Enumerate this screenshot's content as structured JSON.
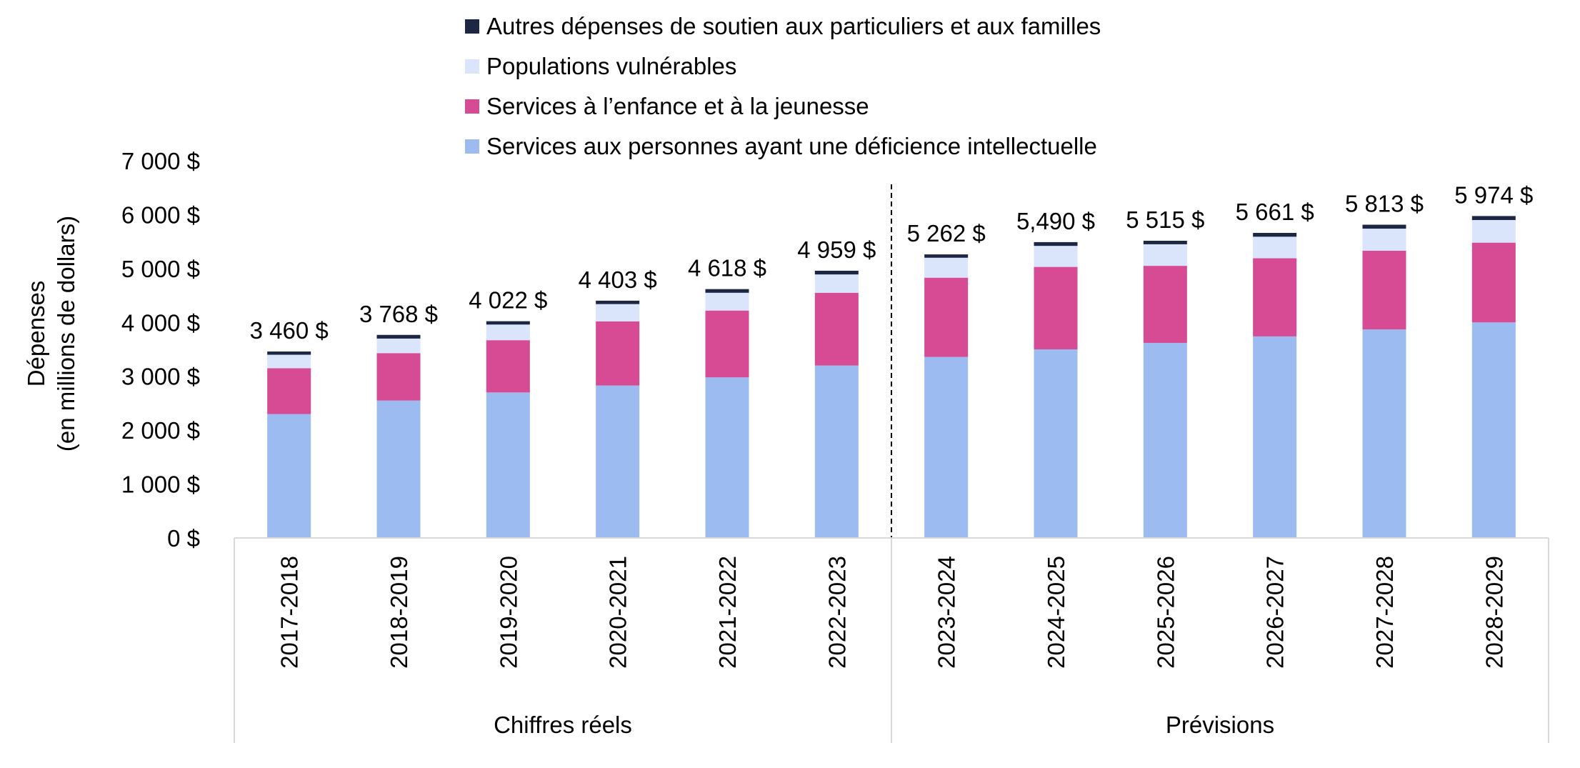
{
  "chart_data": {
    "type": "bar",
    "stacked": true,
    "ylabel_lines": [
      "Dépenses",
      "(en millions de dollars)"
    ],
    "ylim": [
      0,
      7000
    ],
    "yticks": [
      {
        "value": 0,
        "label": "0 $"
      },
      {
        "value": 1000,
        "label": "1 000 $"
      },
      {
        "value": 2000,
        "label": "2 000 $"
      },
      {
        "value": 3000,
        "label": "3 000 $"
      },
      {
        "value": 4000,
        "label": "4 000 $"
      },
      {
        "value": 5000,
        "label": "5 000 $"
      },
      {
        "value": 6000,
        "label": "6 000 $"
      },
      {
        "value": 7000,
        "label": "7 000 $"
      }
    ],
    "categories": [
      "2017-2018",
      "2018-2019",
      "2019-2020",
      "2020-2021",
      "2021-2022",
      "2022-2023",
      "2023-2024",
      "2024-2025",
      "2025-2026",
      "2026-2027",
      "2027-2028",
      "2028-2029"
    ],
    "groups": [
      {
        "label": "Chiffres réels",
        "count": 6
      },
      {
        "label": "Prévisions",
        "count": 6
      }
    ],
    "series": [
      {
        "name": "Services aux personnes ayant une déficience intellectuelle",
        "color": "#9cbbf0",
        "values": [
          2300,
          2550,
          2700,
          2830,
          2980,
          3200,
          3360,
          3500,
          3620,
          3740,
          3870,
          4000
        ]
      },
      {
        "name": "Services à l’enfance et à la jeunesse",
        "color": "#d64b94",
        "values": [
          850,
          880,
          970,
          1190,
          1240,
          1350,
          1470,
          1530,
          1430,
          1450,
          1460,
          1480
        ]
      },
      {
        "name": "Populations vulnérables",
        "color": "#dae4fa",
        "values": [
          250,
          270,
          290,
          320,
          330,
          340,
          370,
          390,
          400,
          400,
          410,
          420
        ]
      },
      {
        "name": "Autres dépenses de soutien aux particuliers et aux familles",
        "color": "#1c2743",
        "values": [
          60,
          68,
          62,
          63,
          68,
          69,
          62,
          70,
          65,
          71,
          73,
          74
        ]
      }
    ],
    "totals": [
      "3 460 $",
      "3 768 $",
      "4 022 $",
      "4 403 $",
      "4 618 $",
      "4 959 $",
      "5 262 $",
      "5,490 $",
      "5 515 $",
      "5 661 $",
      "5 813 $",
      "5 974 $"
    ],
    "legend_order": [
      3,
      2,
      1,
      0
    ],
    "legend_position": "top"
  }
}
